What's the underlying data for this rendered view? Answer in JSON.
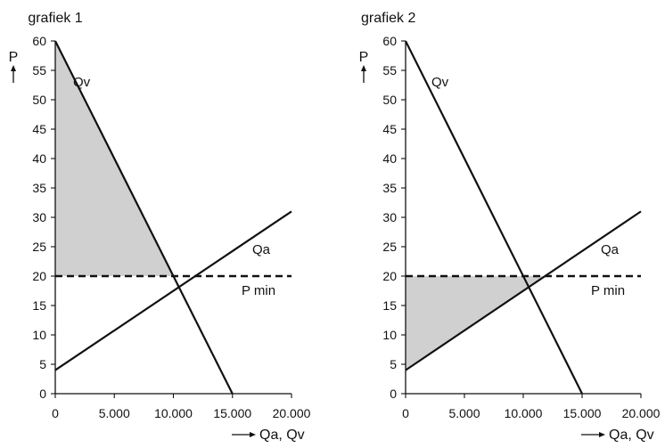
{
  "chart_data": [
    {
      "type": "line",
      "title": "grafiek 1",
      "ylabel": "P",
      "xlabel": "Qa, Qv",
      "xlim": [
        0,
        20000
      ],
      "ylim": [
        0,
        60
      ],
      "x_ticks": [
        "0",
        "5.000",
        "10.000",
        "15.000",
        "20.000"
      ],
      "y_ticks": [
        "0",
        "5",
        "10",
        "15",
        "20",
        "25",
        "30",
        "35",
        "40",
        "45",
        "50",
        "55",
        "60"
      ],
      "grid": false,
      "series": [
        {
          "name": "Qv",
          "x": [
            0,
            15000
          ],
          "y": [
            60,
            0
          ],
          "style": "solid"
        },
        {
          "name": "Qa",
          "x": [
            0,
            20000
          ],
          "y": [
            4,
            31
          ],
          "style": "solid"
        },
        {
          "name": "P min",
          "x": [
            0,
            20000
          ],
          "y": [
            20,
            20
          ],
          "style": "dashed"
        }
      ],
      "shaded_region": {
        "points": [
          [
            0,
            60
          ],
          [
            0,
            20
          ],
          [
            10000,
            20
          ]
        ],
        "color": "#d0d0d0"
      }
    },
    {
      "type": "line",
      "title": "grafiek 2",
      "ylabel": "P",
      "xlabel": "Qa, Qv",
      "xlim": [
        0,
        20000
      ],
      "ylim": [
        0,
        60
      ],
      "x_ticks": [
        "0",
        "5.000",
        "10.000",
        "15.000",
        "20.000"
      ],
      "y_ticks": [
        "0",
        "5",
        "10",
        "15",
        "20",
        "25",
        "30",
        "35",
        "40",
        "45",
        "50",
        "55",
        "60"
      ],
      "grid": false,
      "series": [
        {
          "name": "Qv",
          "x": [
            0,
            15000
          ],
          "y": [
            60,
            0
          ],
          "style": "solid"
        },
        {
          "name": "Qa",
          "x": [
            0,
            20000
          ],
          "y": [
            4,
            31
          ],
          "style": "solid"
        },
        {
          "name": "P min",
          "x": [
            0,
            20000
          ],
          "y": [
            20,
            20
          ],
          "style": "dashed"
        }
      ],
      "shaded_region": {
        "points": [
          [
            0,
            20
          ],
          [
            0,
            4
          ],
          [
            11852,
            20
          ]
        ],
        "color": "#d0d0d0"
      }
    }
  ]
}
